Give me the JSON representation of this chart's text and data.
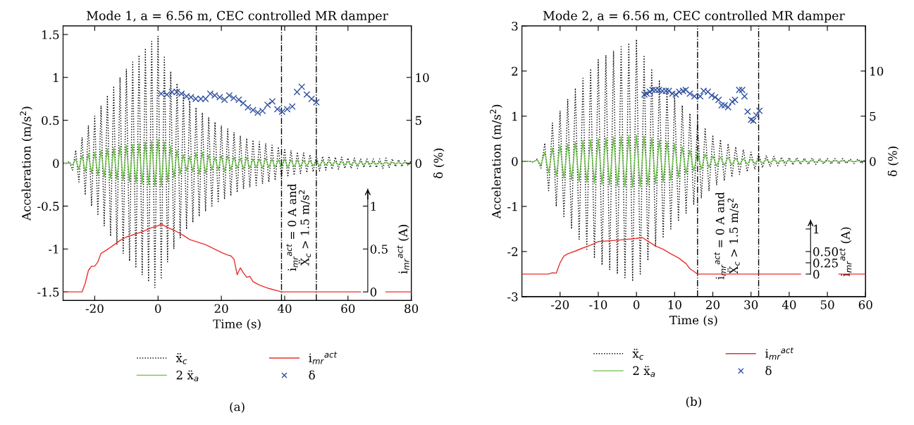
{
  "chart_data": [
    {
      "type": "line",
      "title": "Mode 1, a = 6.56 m, CEC controlled MR damper",
      "xlabel": "Time (s)",
      "ylabel": "Acceleration (m/s$^{2}$)",
      "y2label": "δ (%)",
      "y3label": "i$_{mr}$$^{act}$ (A)",
      "xlim": [
        -30,
        80
      ],
      "xticks": [
        -20,
        0,
        20,
        40,
        60,
        80
      ],
      "ylim": [
        -1.6,
        1.6
      ],
      "yticks": [
        -1.5,
        -1,
        -0.5,
        0,
        0.5,
        1,
        1.5
      ],
      "y2lim": [
        -16,
        16
      ],
      "y2ticks": [
        0,
        5,
        10
      ],
      "y3lim": [
        -0.1,
        3.1
      ],
      "y3ticks": [
        0,
        0.5,
        1
      ],
      "legend": "bottom",
      "x": [
        -30,
        -29,
        -28,
        -27,
        -26,
        -25,
        -24,
        -23,
        -22,
        -21,
        -20,
        -19,
        -18,
        -17,
        -16,
        -15,
        -14,
        -13,
        -12,
        -11,
        -10,
        -9,
        -8,
        -7,
        -6,
        -5,
        -4,
        -3,
        -2,
        -1,
        0,
        1,
        2,
        3,
        4,
        5,
        6,
        7,
        8,
        9,
        10,
        11,
        12,
        13,
        14,
        15,
        16,
        17,
        18,
        19,
        20,
        21,
        22,
        23,
        24,
        25,
        26,
        27,
        28,
        29,
        30,
        31,
        32,
        33,
        34,
        35,
        36,
        37,
        38,
        39,
        40,
        41,
        42,
        43,
        44,
        45,
        46,
        47,
        48,
        49,
        50,
        51,
        52,
        53,
        54,
        55,
        56,
        57,
        58,
        59,
        60,
        61,
        62,
        63,
        64,
        65,
        66,
        67,
        68,
        69,
        70,
        71,
        72,
        73,
        74,
        75,
        76,
        77,
        78,
        79,
        80
      ],
      "series": [
        {
          "name": "ẍ$_{c}$",
          "color": "#000000",
          "line_style": "dotted",
          "marker": "none",
          "values": [
            0,
            0,
            0.02,
            -0.08,
            0.15,
            -0.22,
            0.3,
            -0.37,
            0.44,
            -0.5,
            0.55,
            -0.61,
            0.67,
            -0.73,
            0.79,
            -0.85,
            0.9,
            -0.95,
            1.0,
            -1.05,
            1.1,
            -1.14,
            1.18,
            -1.22,
            1.26,
            -1.3,
            1.34,
            -1.38,
            1.42,
            -1.45,
            1.48,
            -1.35,
            1.25,
            -1.15,
            1.07,
            -1.0,
            0.93,
            -0.87,
            0.82,
            -0.77,
            0.73,
            -0.69,
            0.65,
            -0.62,
            0.59,
            -0.56,
            0.53,
            -0.5,
            0.48,
            -0.46,
            0.44,
            -0.42,
            0.4,
            -0.38,
            0.36,
            -0.34,
            0.32,
            -0.3,
            0.29,
            -0.28,
            0.27,
            -0.26,
            0.25,
            -0.24,
            0.23,
            -0.22,
            0.21,
            -0.2,
            0.19,
            -0.18,
            0.17,
            -0.16,
            0.15,
            -0.14,
            0.13,
            -0.12,
            0.12,
            -0.11,
            0.1,
            -0.1,
            0.09,
            -0.09,
            0.08,
            -0.08,
            0.08,
            -0.07,
            0.07,
            -0.07,
            0.07,
            -0.06,
            0.06,
            -0.06,
            0.06,
            -0.06,
            0.05,
            -0.05,
            0.05,
            -0.05,
            0.05,
            -0.05,
            0.05,
            -0.06,
            0.06,
            -0.05,
            0.05,
            -0.04,
            0.04,
            -0.04,
            0.03,
            -0.03,
            0.03
          ]
        },
        {
          "name": "2 ẍ$_{a}$",
          "color": "#6cc04a",
          "line_style": "solid",
          "marker": "none",
          "values": [
            0,
            0,
            0,
            -0.02,
            0.05,
            -0.07,
            0.09,
            -0.1,
            0.11,
            -0.12,
            0.13,
            -0.14,
            0.15,
            -0.16,
            0.17,
            -0.18,
            0.18,
            -0.19,
            0.2,
            -0.2,
            0.21,
            -0.22,
            0.22,
            -0.23,
            0.23,
            -0.24,
            0.25,
            -0.25,
            0.26,
            -0.27,
            0.28,
            -0.27,
            0.25,
            -0.22,
            0.2,
            -0.17,
            0.15,
            -0.13,
            0.1,
            -0.09,
            0.08,
            -0.1,
            0.12,
            -0.13,
            0.13,
            -0.12,
            0.1,
            -0.08,
            0.07,
            -0.08,
            0.09,
            -0.1,
            0.09,
            -0.08,
            0.07,
            -0.06,
            0.06,
            -0.07,
            0.07,
            -0.06,
            0.05,
            -0.05,
            0.05,
            -0.06,
            0.06,
            -0.05,
            0.05,
            -0.05,
            0.04,
            -0.04,
            0.05,
            -0.05,
            0.04,
            -0.04,
            0.04,
            -0.04,
            0.03,
            -0.03,
            0.03,
            -0.03,
            0.03,
            -0.03,
            0.03,
            -0.02,
            0.02,
            -0.02,
            0.02,
            -0.02,
            0.02,
            -0.02,
            0.02,
            -0.02,
            0.02,
            -0.02,
            0.02,
            -0.02,
            0.02,
            -0.01,
            0.01,
            -0.01,
            0.01,
            -0.01,
            0.01,
            -0.01,
            0.01,
            -0.01,
            0.01,
            -0.01,
            0.01,
            -0.01,
            0.01
          ]
        },
        {
          "name": "i$_{mr}$$^{act}$",
          "color": "#e8312f",
          "axis": "y3",
          "line_style": "solid",
          "marker": "none",
          "x": [
            -30,
            -25,
            -24,
            -23,
            -22,
            -21,
            -20,
            -19,
            -18,
            -17,
            -15,
            -12,
            -10,
            -5,
            -2,
            0,
            1,
            3,
            5,
            8,
            10,
            15,
            20,
            22,
            23,
            24,
            25,
            26,
            27,
            28,
            29,
            30,
            32,
            35,
            39,
            50,
            64,
            65,
            71,
            72,
            80
          ],
          "values": [
            0,
            0,
            0,
            0.1,
            0.25,
            0.3,
            0.3,
            0.35,
            0.45,
            0.47,
            0.52,
            0.6,
            0.64,
            0.7,
            0.75,
            0.77,
            0.79,
            0.75,
            0.72,
            0.66,
            0.61,
            0.55,
            0.46,
            0.43,
            0.42,
            0.38,
            0.2,
            0.28,
            0.22,
            0.17,
            0.18,
            0.12,
            0.08,
            0.04,
            0,
            0,
            0,
            null,
            null,
            0,
            0
          ]
        },
        {
          "name": "δ",
          "type": "scatter",
          "color": "#3050a0",
          "axis": "y2",
          "marker": "cross",
          "x": [
            1.0,
            2.8,
            4.4,
            5.9,
            7.4,
            9.0,
            10.4,
            11.9,
            13.5,
            15.0,
            16.5,
            17.9,
            19.5,
            21.0,
            22.5,
            23.9,
            25.5,
            26.9,
            28.4,
            30.0,
            31.5,
            33.0,
            34.6,
            36.1,
            37.7,
            39.2,
            40.8,
            42.4,
            43.9,
            45.4,
            47.0,
            48.5,
            50.0
          ],
          "values": [
            8.1,
            8.0,
            8.3,
            8.3,
            8.1,
            7.8,
            7.7,
            7.5,
            7.5,
            7.5,
            8.1,
            7.9,
            7.7,
            7.4,
            7.9,
            7.6,
            7.4,
            7.0,
            6.5,
            6.2,
            5.9,
            6.1,
            6.8,
            7.2,
            6.3,
            6.0,
            6.3,
            6.6,
            8.3,
            8.9,
            8.0,
            7.5,
            7.1
          ]
        }
      ],
      "ref_lines": [
        {
          "axis": "x",
          "value": 39,
          "color": "#000000",
          "line_style": "dashdot"
        },
        {
          "axis": "x",
          "value": 50,
          "color": "#000000",
          "line_style": "dashdot"
        }
      ],
      "annotations": [
        "i$_{mr}$$^{act}$ = 0 A and",
        "Ẍ$_{c}$ > 1.5 m/s$^{2}$",
        "(a)"
      ]
    },
    {
      "type": "line",
      "title": "Mode 2, a = 6.56 m, CEC controlled MR damper",
      "xlabel": "Time (s)",
      "ylabel": "Acceleration (m/s$^{2}$)",
      "y2label": "δ (%)",
      "y3label": "i$_{mr}$$^{act}$ (A)",
      "xlim": [
        -30,
        60
      ],
      "xticks": [
        -20,
        -10,
        0,
        10,
        20,
        30,
        40,
        50,
        60
      ],
      "ylim": [
        -3,
        3
      ],
      "yticks": [
        -3,
        -2,
        -1,
        0,
        1,
        2,
        3
      ],
      "y2lim": [
        -15,
        15
      ],
      "y2ticks": [
        0,
        5,
        10
      ],
      "y3lim": [
        -0.5,
        5.5
      ],
      "y3ticks": [
        0,
        {
          "value": 0.25,
          "label": "0.25"
        },
        {
          "value": 0.5,
          "label": "0.50"
        },
        1
      ],
      "legend": "bottom",
      "x": [
        -30,
        -29,
        -28,
        -27,
        -26,
        -25,
        -24,
        -23,
        -22,
        -21,
        -20,
        -19,
        -18,
        -17,
        -16,
        -15,
        -14,
        -13,
        -12,
        -11,
        -10,
        -9,
        -8,
        -7,
        -6,
        -5,
        -4,
        -3,
        -2,
        -1,
        0,
        1,
        2,
        3,
        4,
        5,
        6,
        7,
        8,
        9,
        10,
        11,
        12,
        13,
        14,
        15,
        16,
        17,
        18,
        19,
        20,
        21,
        22,
        23,
        24,
        25,
        26,
        27,
        28,
        29,
        30,
        31,
        32,
        33,
        34,
        35,
        36,
        37,
        38,
        39,
        40,
        41,
        42,
        43,
        44,
        45,
        46,
        47,
        48,
        49,
        50,
        51,
        52,
        53,
        54,
        55,
        56,
        57,
        58,
        59,
        60
      ],
      "series": [
        {
          "name": "ẍ$_{c}$",
          "color": "#000000",
          "line_style": "dotted",
          "marker": "none",
          "values": [
            0,
            0,
            0,
            -0.02,
            0.05,
            -0.15,
            0.4,
            -0.65,
            0.85,
            -1.0,
            1.12,
            -1.25,
            1.38,
            -1.5,
            1.62,
            -1.73,
            1.84,
            -1.95,
            2.05,
            -2.15,
            2.25,
            -2.3,
            2.35,
            -2.4,
            2.45,
            -2.5,
            2.54,
            -2.58,
            2.62,
            -2.66,
            2.7,
            -2.5,
            2.35,
            -2.2,
            2.05,
            -1.9,
            1.8,
            -1.7,
            1.6,
            -1.5,
            1.42,
            -1.33,
            1.24,
            -1.15,
            1.06,
            -0.97,
            0.9,
            -0.82,
            0.74,
            -0.66,
            0.58,
            -0.53,
            0.48,
            -0.43,
            0.39,
            -0.35,
            0.32,
            -0.29,
            0.26,
            -0.23,
            0.2,
            -0.18,
            0.16,
            -0.14,
            0.13,
            -0.12,
            0.11,
            -0.1,
            0.09,
            -0.09,
            0.08,
            -0.08,
            0.08,
            -0.07,
            0.07,
            -0.07,
            0.07,
            -0.07,
            0.06,
            -0.06,
            0.06,
            -0.06,
            0.06,
            -0.06,
            0.06,
            -0.05,
            0.05,
            -0.05,
            0.05,
            -0.05,
            0.05
          ]
        },
        {
          "name": "2 ẍ$_{a}$",
          "color": "#6cc04a",
          "line_style": "solid",
          "marker": "none",
          "values": [
            0,
            0,
            0,
            -0.01,
            0.03,
            -0.08,
            0.2,
            -0.26,
            0.3,
            -0.33,
            0.35,
            -0.37,
            0.39,
            -0.41,
            0.43,
            -0.45,
            0.46,
            -0.47,
            0.48,
            -0.49,
            0.5,
            -0.51,
            0.52,
            -0.53,
            0.54,
            -0.55,
            0.56,
            -0.57,
            0.57,
            -0.58,
            0.58,
            -0.57,
            0.56,
            -0.54,
            0.52,
            -0.5,
            0.48,
            -0.46,
            0.44,
            -0.42,
            0.4,
            -0.36,
            0.32,
            -0.28,
            0.25,
            -0.22,
            0.2,
            -0.18,
            0.16,
            -0.14,
            0.12,
            -0.11,
            0.1,
            -0.09,
            0.09,
            -0.08,
            0.07,
            -0.07,
            0.06,
            -0.06,
            0.05,
            -0.05,
            0.04,
            -0.04,
            0.04,
            -0.03,
            0.03,
            -0.03,
            0.02,
            -0.02,
            0.02,
            -0.02,
            0.02,
            -0.02,
            0.02,
            -0.02,
            0.02,
            -0.02,
            0.02,
            -0.02,
            0.01,
            -0.01,
            0.01,
            -0.01,
            0.01,
            -0.01,
            0.01,
            -0.01,
            0.01,
            -0.01,
            null
          ]
        },
        {
          "name": "i$_{mr}$$^{act}$",
          "color": "#e8312f",
          "axis": "y3",
          "line_style": "solid",
          "marker": "none",
          "x": [
            -30,
            -23,
            -22,
            -21,
            -20,
            -19,
            -18,
            -16,
            -14,
            -12,
            -10,
            -5,
            0,
            1.5,
            3,
            5,
            7,
            9,
            11,
            13,
            14,
            15,
            16,
            30,
            43,
            44,
            52,
            53,
            60
          ],
          "values": [
            0,
            0,
            0.03,
            0.02,
            0.25,
            0.4,
            0.45,
            0.51,
            0.58,
            0.64,
            0.72,
            0.75,
            0.79,
            0.81,
            0.73,
            0.62,
            0.55,
            0.45,
            0.36,
            0.23,
            0.12,
            0.06,
            0,
            0,
            0,
            null,
            null,
            0,
            0
          ]
        },
        {
          "name": "δ",
          "type": "scatter",
          "color": "#3050a0",
          "axis": "y2",
          "marker": "cross",
          "x": [
            2.1,
            2.7,
            3.5,
            4.2,
            5.0,
            5.9,
            6.8,
            7.7,
            8.5,
            9.4,
            10.3,
            11.2,
            12.2,
            12.9,
            14.0,
            15.2,
            16.7,
            17.6,
            18.7,
            19.7,
            20.6,
            21.5,
            22.3,
            23.1,
            24.0,
            25.1,
            25.8,
            26.9,
            27.7,
            28.3,
            29.1,
            30.0,
            30.6,
            31.4,
            32.2
          ],
          "values": [
            7.4,
            7.5,
            7.7,
            7.9,
            7.9,
            7.9,
            7.8,
            7.8,
            7.8,
            7.5,
            7.4,
            7.7,
            7.8,
            7.9,
            7.5,
            7.2,
            7.2,
            7.8,
            7.7,
            7.3,
            7.1,
            6.8,
            6.2,
            6.2,
            6.0,
            6.6,
            6.8,
            7.9,
            7.9,
            7.2,
            5.5,
            4.6,
            4.5,
            5.1,
            5.6
          ]
        }
      ],
      "ref_lines": [
        {
          "axis": "x",
          "value": 16,
          "color": "#000000",
          "line_style": "dashdot"
        },
        {
          "axis": "x",
          "value": 32,
          "color": "#000000",
          "line_style": "dashdot"
        }
      ],
      "annotations": [
        "i$_{mr}$$^{act}$ = 0 A and",
        "Ẍ$_{c}$ > 1.5 m/s$^{2}$",
        "(b)"
      ]
    }
  ]
}
